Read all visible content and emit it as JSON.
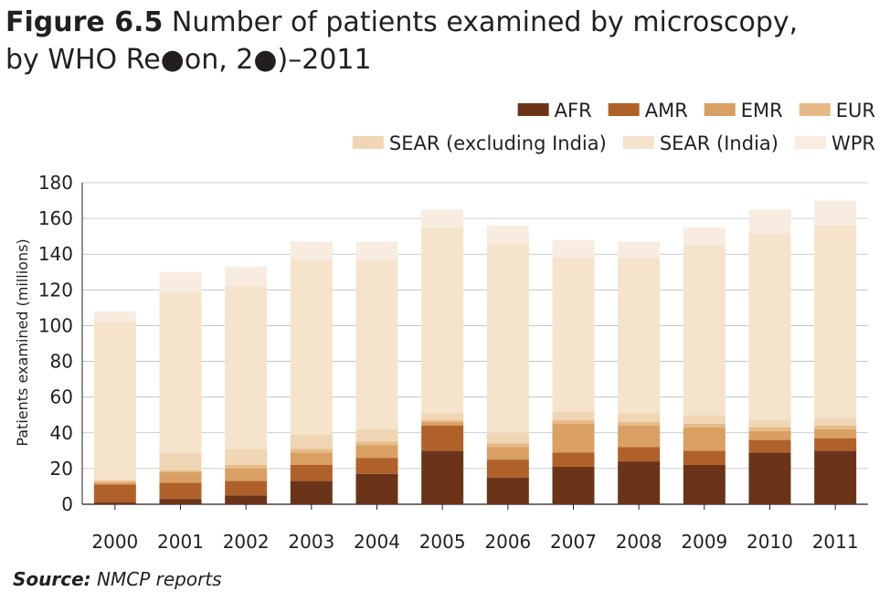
{
  "header": {
    "figure_label": "Figure 6.5",
    "title": "Number of patients examined by microscopy,",
    "title_line2": "by WHO Re●on, 2●)–2011"
  },
  "source": {
    "label": "Source:",
    "text": "NMCP reports"
  },
  "chart_data": {
    "type": "bar",
    "stacked": true,
    "categories": [
      "2000",
      "2001",
      "2002",
      "2003",
      "2004",
      "2005",
      "2006",
      "2007",
      "2008",
      "2009",
      "2010",
      "2011"
    ],
    "ylabel": "Patients examined (millions)",
    "ylim": [
      0,
      180
    ],
    "yticks": [
      0,
      20,
      40,
      60,
      80,
      100,
      120,
      140,
      160,
      180
    ],
    "grid": true,
    "legend_position": "top-right",
    "series": [
      {
        "name": "AFR",
        "color": "#6b3419",
        "values": [
          1,
          3,
          5,
          13,
          17,
          30,
          15,
          21,
          24,
          22,
          29,
          30
        ]
      },
      {
        "name": "AMR",
        "color": "#b0612a",
        "values": [
          10,
          9,
          8,
          9,
          9,
          14,
          10,
          8,
          8,
          8,
          7,
          7
        ]
      },
      {
        "name": "EMR",
        "color": "#d99f63",
        "values": [
          1,
          6,
          7,
          7,
          7,
          2,
          7,
          16,
          12,
          13,
          5,
          5
        ]
      },
      {
        "name": "EUR",
        "color": "#e6ba86",
        "values": [
          1,
          1,
          2,
          2,
          2,
          1,
          2,
          2,
          2,
          2,
          2,
          2
        ]
      },
      {
        "name": "SEAR (excluding India)",
        "color": "#f0d6b4",
        "values": [
          1,
          10,
          9,
          8,
          7,
          4,
          6,
          5,
          5,
          5,
          4,
          4
        ]
      },
      {
        "name": "SEAR (India)",
        "color": "#f5e3cc",
        "values": [
          88,
          90,
          91,
          98,
          95,
          104,
          106,
          86,
          87,
          95,
          105,
          108
        ]
      },
      {
        "name": "WPR",
        "color": "#f8ece1",
        "values": [
          6,
          11,
          11,
          10,
          10,
          10,
          10,
          10,
          9,
          10,
          13,
          14
        ]
      }
    ]
  }
}
